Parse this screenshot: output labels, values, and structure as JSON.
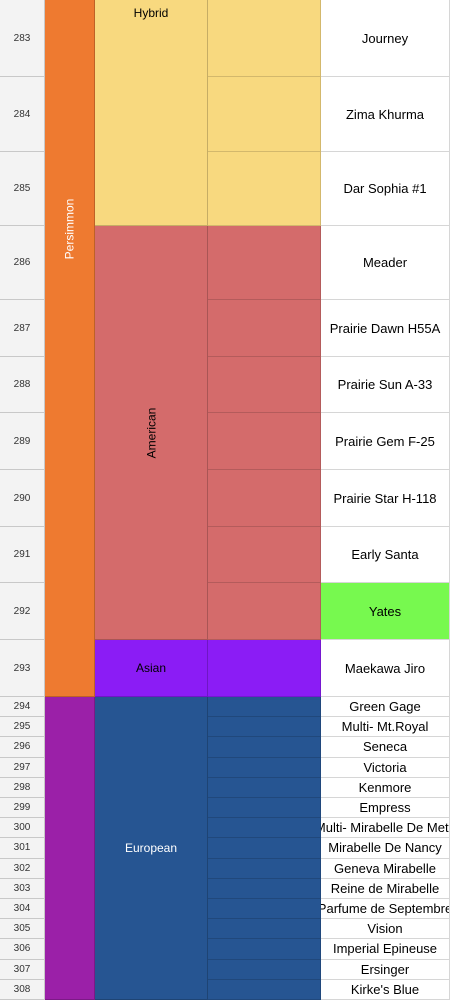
{
  "sheet": {
    "rows": [
      {
        "number": "283",
        "name": "Journey"
      },
      {
        "number": "284",
        "name": "Zima Khurma"
      },
      {
        "number": "285",
        "name": "Dar Sophia #1"
      },
      {
        "number": "286",
        "name": "Meader"
      },
      {
        "number": "287",
        "name": "Prairie Dawn H55A"
      },
      {
        "number": "288",
        "name": "Prairie Sun A-33"
      },
      {
        "number": "289",
        "name": "Prairie Gem F-25"
      },
      {
        "number": "290",
        "name": "Prairie Star H-118"
      },
      {
        "number": "291",
        "name": "Early Santa"
      },
      {
        "number": "292",
        "name": "Yates",
        "color": "#77f94f"
      },
      {
        "number": "293",
        "name": "Maekawa Jiro"
      },
      {
        "number": "294",
        "name": "Green Gage"
      },
      {
        "number": "295",
        "name": "Multi- Mt.Royal"
      },
      {
        "number": "296",
        "name": "Seneca"
      },
      {
        "number": "297",
        "name": "Victoria"
      },
      {
        "number": "298",
        "name": "Kenmore"
      },
      {
        "number": "299",
        "name": "Empress"
      },
      {
        "number": "300",
        "name": "Multi-  Mirabelle De Metz"
      },
      {
        "number": "301",
        "name": "Mirabelle De Nancy"
      },
      {
        "number": "302",
        "name": "Geneva Mirabelle"
      },
      {
        "number": "303",
        "name": "Reine de Mirabelle"
      },
      {
        "number": "304",
        "name": "Parfume de Septembre"
      },
      {
        "number": "305",
        "name": "Vision"
      },
      {
        "number": "306",
        "name": "Imperial Epineuse"
      },
      {
        "number": "307",
        "name": "Ersinger"
      },
      {
        "number": "308",
        "name": "Kirke's Blue"
      }
    ],
    "fruit_groups": [
      {
        "label": "Persimmon",
        "span": 11,
        "color": "#ee7a30"
      },
      {
        "span": 15,
        "color": "#9b20a8"
      }
    ],
    "type_groups": [
      {
        "label": "Hybrid",
        "span": 3,
        "color": "#f8d97f",
        "align": "top"
      },
      {
        "label": "American",
        "span": 7,
        "color": "#d46b6b",
        "vertical": true
      },
      {
        "label": "Asian",
        "span": 1,
        "color": "#8b1cf5"
      },
      {
        "label": "European",
        "span": 15,
        "color": "#265592"
      }
    ]
  }
}
